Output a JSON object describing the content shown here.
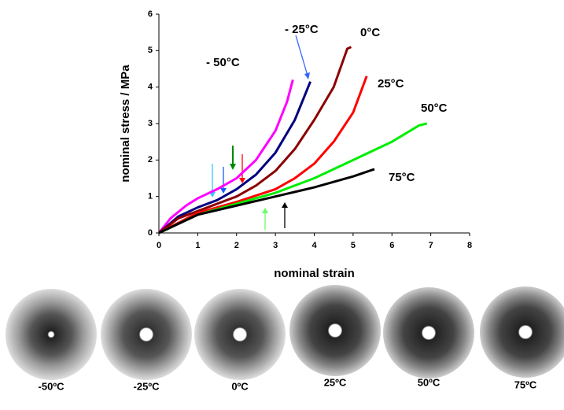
{
  "chart_data": {
    "type": "line",
    "xlabel": "nominal strain",
    "ylabel": "nominal stress / MPa",
    "xlim": [
      0,
      8
    ],
    "ylim": [
      0,
      6
    ],
    "xticks": [
      0,
      1,
      2,
      3,
      4,
      5,
      6,
      7,
      8
    ],
    "yticks": [
      0,
      1,
      2,
      3,
      4,
      5,
      6
    ],
    "grid": false,
    "series": [
      {
        "name": "- 50°C",
        "color": "#ff00ff",
        "x": [
          0,
          0.3,
          0.7,
          1,
          1.5,
          2,
          2.5,
          3,
          3.3,
          3.45
        ],
        "values": [
          0,
          0.4,
          0.75,
          0.95,
          1.2,
          1.5,
          2.0,
          2.8,
          3.6,
          4.2
        ]
      },
      {
        "name": "- 25°C",
        "color": "#000080",
        "x": [
          0,
          0.5,
          1,
          1.5,
          2,
          2.5,
          3,
          3.5,
          3.9
        ],
        "values": [
          0,
          0.45,
          0.7,
          0.9,
          1.2,
          1.6,
          2.2,
          3.1,
          4.15
        ]
      },
      {
        "name": "0°C",
        "color": "#8b0000",
        "x": [
          0,
          0.5,
          1,
          2,
          2.5,
          3,
          3.5,
          4,
          4.5,
          4.85,
          4.95
        ],
        "values": [
          0,
          0.4,
          0.6,
          1.0,
          1.3,
          1.7,
          2.3,
          3.1,
          4.0,
          5.05,
          5.1
        ]
      },
      {
        "name": "25°C",
        "color": "#ff0000",
        "x": [
          0,
          1,
          2,
          3,
          3.5,
          4,
          4.5,
          5,
          5.35
        ],
        "values": [
          0,
          0.55,
          0.85,
          1.2,
          1.5,
          1.9,
          2.5,
          3.3,
          4.3
        ]
      },
      {
        "name": "50°C",
        "color": "#00ee00",
        "x": [
          0,
          1,
          2,
          3,
          4,
          5,
          6,
          6.7,
          6.9
        ],
        "values": [
          0,
          0.5,
          0.8,
          1.1,
          1.5,
          2.0,
          2.5,
          2.95,
          3.0
        ]
      },
      {
        "name": "75°C",
        "color": "#000000",
        "x": [
          0,
          1,
          2,
          3,
          4,
          5,
          5.55
        ],
        "values": [
          0,
          0.5,
          0.75,
          1.0,
          1.25,
          1.55,
          1.75
        ]
      }
    ]
  },
  "patterns": [
    {
      "label": "-50ºC"
    },
    {
      "label": "-25ºC"
    },
    {
      "label": "0ºC"
    },
    {
      "label": "25ºC"
    },
    {
      "label": "50ºC"
    },
    {
      "label": "75ºC"
    }
  ]
}
